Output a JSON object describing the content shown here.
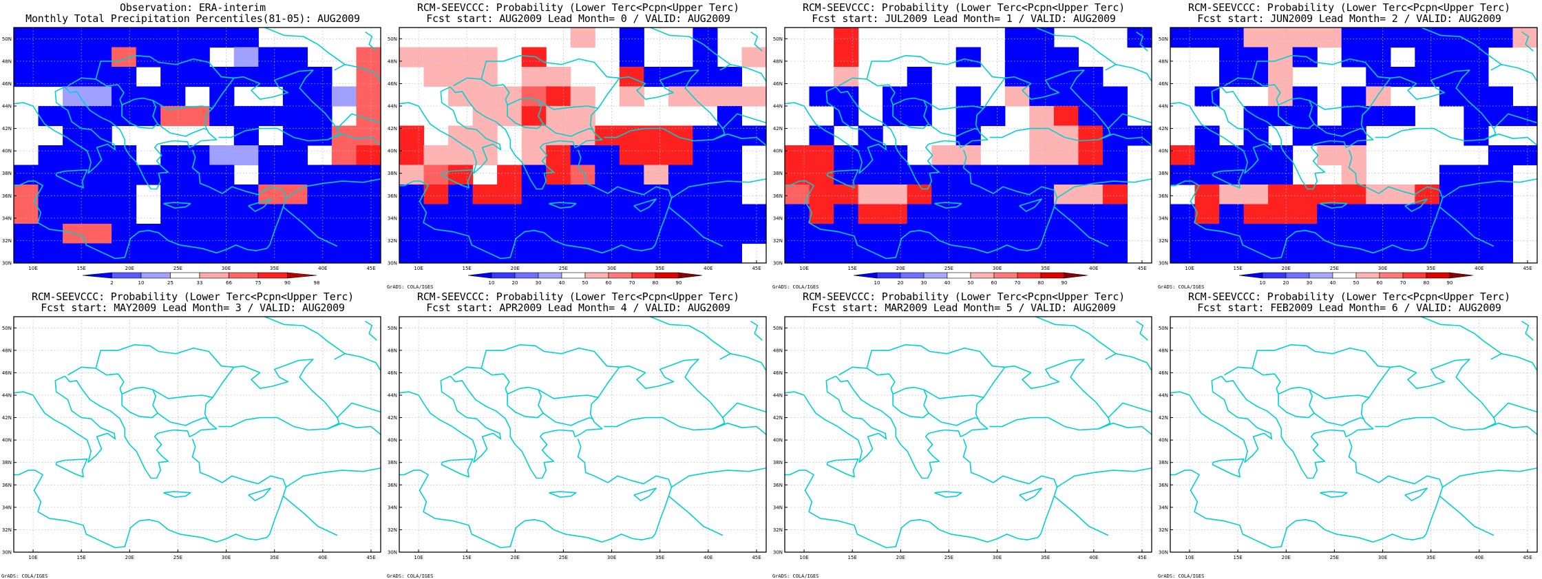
{
  "panels": [
    {
      "title1": "Observation: ERA-interim",
      "title2": "Monthly Total Precipitation Percentiles(81-05): AUG2009",
      "colorbar": {
        "labels": [
          "2",
          "10",
          "25",
          "33",
          "66",
          "75",
          "90",
          "98"
        ],
        "colors": [
          "#0000ff",
          "#5a5aff",
          "#a0a0ff",
          "#ffffff",
          "#ffaaaa",
          "#ff6666",
          "#ff2020",
          "#bb0000"
        ]
      },
      "credit": "",
      "grid": [
        "mmbbbbbbbmmmmmmmmmmmm",
        "wwwwbbblbbmmmmmmmmmmm",
        "wwwwbbwwbbmmmmmmmmmmm",
        "wwwbbrbwlbmmmmmmmmmmm"
      ]
    },
    {
      "title1": "RCM-SEEVCCC: Probability (Lower Terc<Pcpn<Upper Terc)",
      "title2": "Fcst start: AUG2009  Lead Month= 0 / VALID: AUG2009",
      "colorbar": {
        "labels": [
          "10",
          "20",
          "30",
          "40",
          "50",
          "60",
          "70",
          "80",
          "90"
        ],
        "colors": [
          "#0000ff",
          "#3838ff",
          "#7070ff",
          "#a8a8ff",
          "#ffffff",
          "#ffb4b4",
          "#ff7a7a",
          "#ff3a3a",
          "#e00000",
          "#8a0000"
        ]
      },
      "credit": "GrADS: COLA/IGES"
    },
    {
      "title1": "RCM-SEEVCCC: Probability (Lower Terc<Pcpn<Upper Terc)",
      "title2": "Fcst start: JUL2009  Lead Month= 1 / VALID: AUG2009",
      "colorbar": {
        "labels": [
          "10",
          "20",
          "30",
          "40",
          "50",
          "60",
          "70",
          "80",
          "90"
        ],
        "colors": [
          "#0000ff",
          "#3838ff",
          "#7070ff",
          "#a8a8ff",
          "#ffffff",
          "#ffb4b4",
          "#ff7a7a",
          "#ff3a3a",
          "#e00000",
          "#8a0000"
        ]
      },
      "credit": "GrADS: COLA/IGES"
    },
    {
      "title1": "RCM-SEEVCCC: Probability (Lower Terc<Pcpn<Upper Terc)",
      "title2": "Fcst start: JUN2009  Lead Month= 2 / VALID: AUG2009",
      "colorbar": {
        "labels": [
          "10",
          "20",
          "30",
          "40",
          "50",
          "60",
          "70",
          "80",
          "90"
        ],
        "colors": [
          "#0000ff",
          "#3838ff",
          "#7070ff",
          "#a8a8ff",
          "#ffffff",
          "#ffb4b4",
          "#ff7a7a",
          "#ff3a3a",
          "#e00000",
          "#8a0000"
        ]
      },
      "credit": "GrADS: COLA/IGES"
    },
    {
      "title1": "RCM-SEEVCCC: Probability (Lower Terc<Pcpn<Upper Terc)",
      "title2": "Fcst start: MAY2009  Lead Month= 3 / VALID: AUG2009",
      "credit": "GrADS: COLA/IGES"
    },
    {
      "title1": "RCM-SEEVCCC: Probability (Lower Terc<Pcpn<Upper Terc)",
      "title2": "Fcst start: APR2009  Lead Month= 4 / VALID: AUG2009",
      "credit": "GrADS: COLA/IGES"
    },
    {
      "title1": "RCM-SEEVCCC: Probability (Lower Terc<Pcpn<Upper Terc)",
      "title2": "Fcst start: MAR2009  Lead Month= 5 / VALID: AUG2009",
      "credit": "GrADS: COLA/IGES"
    },
    {
      "title1": "RCM-SEEVCCC: Probability (Lower Terc<Pcpn<Upper Terc)",
      "title2": "Fcst start: FEB2009  Lead Month= 6 / VALID: AUG2009",
      "credit": "GrADS: COLA/IGES"
    }
  ],
  "axes": {
    "lat_labels": [
      "30N",
      "32N",
      "34N",
      "36N",
      "38N",
      "40N",
      "42N",
      "44N",
      "46N",
      "48N",
      "50N"
    ],
    "lon_labels": [
      "10E",
      "15E",
      "20E",
      "25E",
      "30E",
      "35E",
      "40E",
      "45E"
    ],
    "lat_range": [
      30,
      51
    ],
    "lon_range": [
      8,
      46
    ]
  },
  "cells": {
    "0": [
      "bbbbbbbbbbwwww",
      "bbbbrbbbwlbbwwr",
      "bbbbbwbbbbbbbwr",
      "wwllbbbwbwwbblr",
      "wbbbbbrrbbbbbwr",
      "wwbbwwwwwbwbbrr",
      "wbbbbwbbllbbwrR",
      "bbbbbbbbbwbbbbb",
      "rbbbbwbbbbrrbbb",
      "rbbbbwbbbbbbbbb",
      "bbrrbbbbbbbbbbb",
      "bbbbbbbbbbbbbbb"
    ],
    "1": [
      "wwwwwwwpwbwwbww",
      "ppppwRwwwbwwbwp",
      "wpppwppwwRbbbbw",
      "wwppprRpwpwppppw",
      "wwwppRppwwwwwbw",
      "RwppwpppRRRRbbb",
      "RpppwpRbbRRRbbw",
      "prRwRbRrbbpbbbw",
      "bRbRRbbbbbbbbbw",
      "bbbbbbbbbbbbbbb",
      "bbbbbbbbbbbbbbb",
      "bbbbbbbbbbbbbbw"
    ],
    "2": [
      "wwRwwwwwwbbwwwb",
      "wwRwwwwbwbbbwww",
      "wwpwwbwwwbbbbww",
      "wbbwbbwbwpbbbbw",
      "wwbwbbwbbwpRbbw",
      "wbwbwwwbwwppRbb",
      "RRbbbwppwwppRbw",
      "RRbbbbbbbbbbbbw",
      "rRRppRbbbbbppRw",
      "bRbRRbbbbbbbbbw",
      "bbbbbbbbbbbbbbw",
      "bbbbbbbbbbbbbbw"
    ],
    "3": [
      "bbbppppbbbbbbbp",
      "wwbbpbwbbwbbbww",
      "wwbbpwwwbbbbbww",
      "wbwwpbwbpwwbbbw",
      "wwwbbbwbbbwwbbb",
      "wbwbwbbbwwwwbww",
      "RbbbbwppwwwwwbbX",
      "bbbbbwwpwwwbbbw",
      "wRppRRRRppRbbbw",
      "bRbRRRbbbbbbbbw",
      "bbbbbbbbbbbbbbw",
      "bbbbbbbbbbbbbbw"
    ]
  }
}
